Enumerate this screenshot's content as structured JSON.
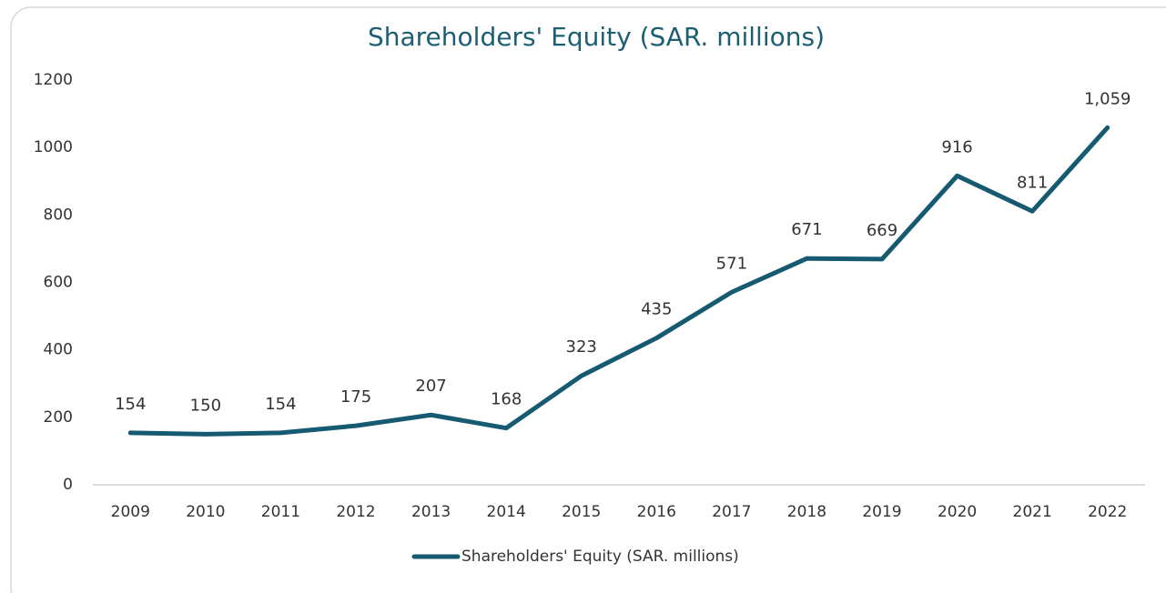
{
  "chart_data": {
    "type": "line",
    "title": "Shareholders' Equity (SAR. millions)",
    "categories": [
      "2009",
      "2010",
      "2011",
      "2012",
      "2013",
      "2014",
      "2015",
      "2016",
      "2017",
      "2018",
      "2019",
      "2020",
      "2021",
      "2022"
    ],
    "series": [
      {
        "name": "Shareholders' Equity (SAR. millions)",
        "color": "#165a72",
        "values": [
          154,
          150,
          154,
          175,
          207,
          168,
          323,
          435,
          571,
          671,
          669,
          916,
          811,
          1059
        ],
        "value_labels": [
          "154",
          "150",
          "154",
          "175",
          "207",
          "168",
          "323",
          "435",
          "571",
          "671",
          "669",
          "916",
          "811",
          "1,059"
        ]
      }
    ],
    "ylim": [
      0,
      1200
    ],
    "yticks": [
      0,
      200,
      400,
      600,
      800,
      1000,
      1200
    ],
    "grid": false,
    "legend": "bottom"
  }
}
